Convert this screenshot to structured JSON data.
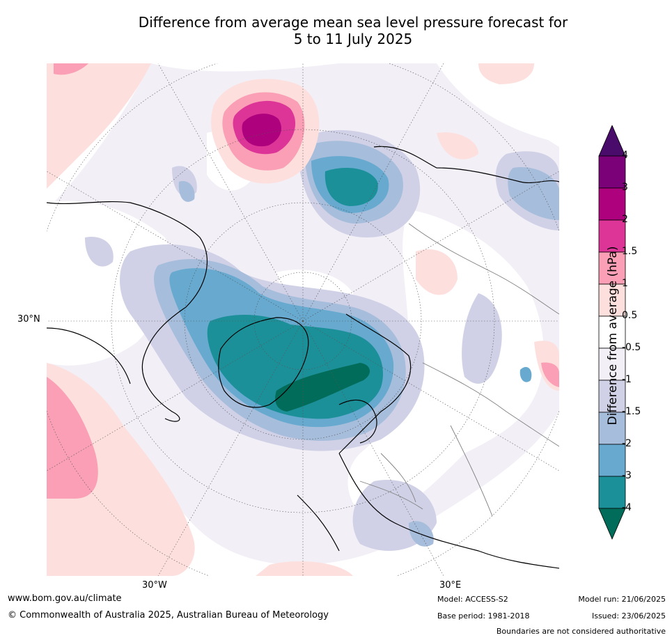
{
  "title": {
    "line1": "Difference from average mean sea level pressure forecast for",
    "line2": "5 to 11 July 2025"
  },
  "map": {
    "projection": "north-polar-stereographic",
    "lat_label": "30°N",
    "lon_labels": [
      "30°W",
      "30°E"
    ],
    "land_outline_color": "#000000",
    "border_color": "#808080",
    "grid_color": "#555555"
  },
  "colorbar": {
    "title": "Difference from average (hPa)",
    "ticks": [
      "4",
      "3",
      "2",
      "1.5",
      "1",
      "0.5",
      "-0.5",
      "-1",
      "-1.5",
      "-2",
      "-3",
      "-4"
    ],
    "bins": [
      {
        "range": "> 4",
        "color": "#4a0c6b"
      },
      {
        "range": "3 to 4",
        "color": "#7a0177"
      },
      {
        "range": "2 to 3",
        "color": "#ae017e"
      },
      {
        "range": "1.5 to 2",
        "color": "#dd3497"
      },
      {
        "range": "1 to 1.5",
        "color": "#fa9fb5"
      },
      {
        "range": "0.5 to 1",
        "color": "#fde0dd"
      },
      {
        "range": "-0.5 to 0.5",
        "color": "#ffffff"
      },
      {
        "range": "-1 to -0.5",
        "color": "#f2eff6"
      },
      {
        "range": "-1.5 to -1",
        "color": "#d0d1e6"
      },
      {
        "range": "-2 to -1.5",
        "color": "#a6bddb"
      },
      {
        "range": "-3 to -2",
        "color": "#67a9cf"
      },
      {
        "range": "-4 to -3",
        "color": "#1c9099"
      },
      {
        "range": "< -4",
        "color": "#016c59"
      }
    ]
  },
  "footer": {
    "url": "www.bom.gov.au/climate",
    "copyright": "© Commonwealth of Australia 2025, Australian Bureau of Meteorology",
    "model": "Model: ACCESS-S2",
    "base_period": "Base period: 1981-2018",
    "model_run": "Model run: 21/06/2025",
    "issued": "Issued: 23/06/2025",
    "disclaimer": "Boundaries are not considered authoritative"
  }
}
